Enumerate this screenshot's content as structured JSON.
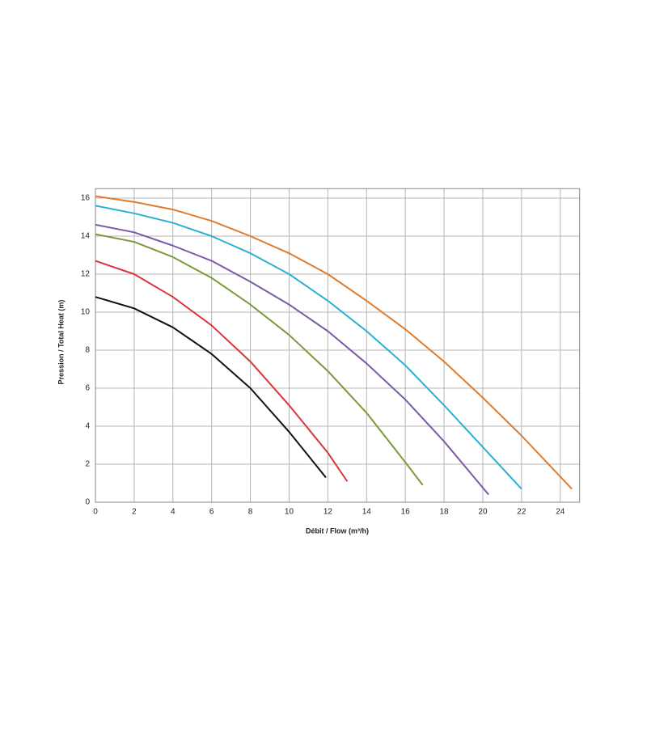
{
  "chart_data": {
    "type": "line",
    "x_label": "Débit / Flow (m³/h)",
    "y_label": "Pression / Total Heat (m)",
    "xlim": [
      0,
      25
    ],
    "ylim": [
      0,
      16.5
    ],
    "xticks": [
      0,
      2,
      4,
      6,
      8,
      10,
      12,
      14,
      16,
      18,
      20,
      22,
      24
    ],
    "yticks": [
      0,
      2,
      4,
      6,
      8,
      10,
      12,
      14,
      16
    ],
    "grid": true,
    "series": [
      {
        "color": "#111111",
        "x": [
          0,
          2,
          4,
          6,
          8,
          10,
          11.9
        ],
        "values": [
          10.8,
          10.2,
          9.2,
          7.8,
          6.0,
          3.7,
          1.3
        ]
      },
      {
        "color": "#d9363e",
        "x": [
          0,
          2,
          4,
          6,
          8,
          10,
          12,
          13
        ],
        "values": [
          12.7,
          12.0,
          10.8,
          9.3,
          7.4,
          5.1,
          2.6,
          1.1
        ]
      },
      {
        "color": "#7a9a3a",
        "x": [
          0,
          2,
          4,
          6,
          8,
          10,
          12,
          14,
          16,
          16.9
        ],
        "values": [
          14.1,
          13.7,
          12.9,
          11.8,
          10.4,
          8.8,
          6.9,
          4.7,
          2.1,
          0.9
        ]
      },
      {
        "color": "#7b5aa6",
        "x": [
          0,
          2,
          4,
          6,
          8,
          10,
          12,
          14,
          16,
          18,
          20.3
        ],
        "values": [
          14.6,
          14.2,
          13.5,
          12.7,
          11.6,
          10.4,
          9.0,
          7.3,
          5.4,
          3.2,
          0.4
        ]
      },
      {
        "color": "#2ab0d4",
        "x": [
          0,
          2,
          4,
          6,
          8,
          10,
          12,
          14,
          16,
          18,
          20,
          22
        ],
        "values": [
          15.6,
          15.2,
          14.7,
          14.0,
          13.1,
          12.0,
          10.6,
          9.0,
          7.2,
          5.1,
          2.9,
          0.7
        ]
      },
      {
        "color": "#e07b2c",
        "x": [
          0,
          2,
          4,
          6,
          8,
          10,
          12,
          14,
          16,
          18,
          20,
          22,
          24.6
        ],
        "values": [
          16.1,
          15.8,
          15.4,
          14.8,
          14.0,
          13.1,
          12.0,
          10.6,
          9.1,
          7.4,
          5.5,
          3.5,
          0.7
        ]
      }
    ]
  }
}
